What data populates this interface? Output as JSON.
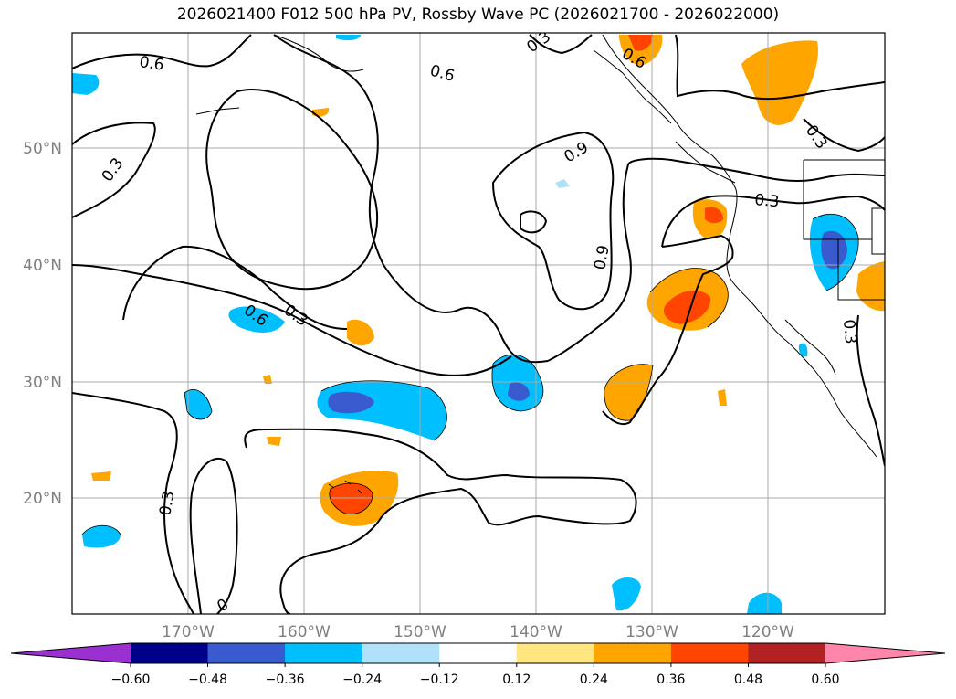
{
  "title": "2026021400 F012 500 hPa PV, Rossby Wave PC (2026021700 - 2026022000)",
  "map": {
    "lat_labels": [
      "50°N",
      "40°N",
      "30°N",
      "20°N"
    ],
    "lon_labels": [
      "170°W",
      "160°W",
      "150°W",
      "140°W",
      "130°W",
      "120°W"
    ],
    "contour_labels": [
      "0.6",
      "0.6",
      "0.3",
      "0.6",
      "0.3",
      "0.9",
      "0.9",
      "0.3",
      "0.3",
      "0.6",
      "0.3",
      "0.3",
      "0",
      "0.3"
    ]
  },
  "colorbar": {
    "ticks": [
      "−0.60",
      "−0.48",
      "−0.36",
      "−0.24",
      "−0.12",
      "0.12",
      "0.24",
      "0.36",
      "0.48",
      "0.60"
    ],
    "colors": [
      "#9b30d0",
      "#00008b",
      "#3a5bd0",
      "#00bfff",
      "#afe2fa",
      "#ffffff",
      "#ffe680",
      "#ffa500",
      "#ff4500",
      "#b22222",
      "#ff85aa"
    ]
  }
}
